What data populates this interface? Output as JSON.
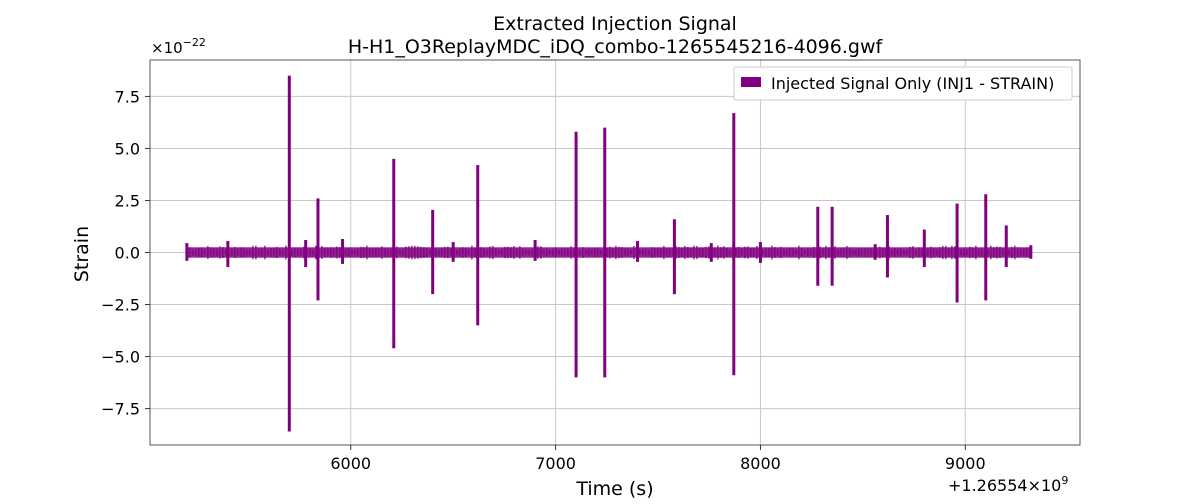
{
  "chart_data": {
    "type": "line",
    "title": "Extracted Injection Signal",
    "subtitle": "H-H1_O3ReplayMDC_iDQ_combo-1265545216-4096.gwf",
    "xlabel": "Time (s)",
    "ylabel": "Strain",
    "x_offset_label": "+1.26554×10",
    "x_offset_exponent": "9",
    "y_scale_label": "×10",
    "y_scale_exponent": "−22",
    "x_ticks": [
      6000,
      7000,
      8000,
      9000
    ],
    "x_tick_labels": [
      "6000",
      "7000",
      "8000",
      "9000"
    ],
    "y_ticks": [
      -7.5,
      -5.0,
      -2.5,
      0.0,
      2.5,
      5.0,
      7.5
    ],
    "y_tick_labels": [
      "−7.5",
      "−5.0",
      "−2.5",
      "0.0",
      "2.5",
      "5.0",
      "7.5"
    ],
    "xlim": [
      5020,
      9560
    ],
    "ylim": [
      -9.25,
      9.25
    ],
    "grid": true,
    "legend_position": "top-right",
    "color": "#800080",
    "series": [
      {
        "name": "Injected Signal Only (INJ1 - STRAIN)",
        "x_range": [
          5200,
          9320
        ],
        "baseline_band": [
          -0.25,
          0.25
        ],
        "spikes": [
          {
            "x": 5200,
            "max": 0.45,
            "min": -0.4
          },
          {
            "x": 5400,
            "max": 0.55,
            "min": -0.7
          },
          {
            "x": 5700,
            "max": 8.5,
            "min": -8.6
          },
          {
            "x": 5780,
            "max": 0.6,
            "min": -0.7
          },
          {
            "x": 5840,
            "max": 2.6,
            "min": -2.3
          },
          {
            "x": 5960,
            "max": 0.65,
            "min": -0.55
          },
          {
            "x": 6210,
            "max": 4.5,
            "min": -4.6
          },
          {
            "x": 6400,
            "max": 2.05,
            "min": -2.0
          },
          {
            "x": 6500,
            "max": 0.5,
            "min": -0.45
          },
          {
            "x": 6620,
            "max": 4.2,
            "min": -3.5
          },
          {
            "x": 6900,
            "max": 0.6,
            "min": -0.4
          },
          {
            "x": 7100,
            "max": 5.8,
            "min": -6.0
          },
          {
            "x": 7240,
            "max": 6.0,
            "min": -6.0
          },
          {
            "x": 7400,
            "max": 0.55,
            "min": -0.45
          },
          {
            "x": 7580,
            "max": 1.6,
            "min": -2.0
          },
          {
            "x": 7760,
            "max": 0.45,
            "min": -0.45
          },
          {
            "x": 7870,
            "max": 6.7,
            "min": -5.9
          },
          {
            "x": 8000,
            "max": 0.5,
            "min": -0.5
          },
          {
            "x": 8280,
            "max": 2.2,
            "min": -1.6
          },
          {
            "x": 8350,
            "max": 2.2,
            "min": -1.6
          },
          {
            "x": 8560,
            "max": 0.4,
            "min": -0.35
          },
          {
            "x": 8620,
            "max": 1.8,
            "min": -1.2
          },
          {
            "x": 8800,
            "max": 1.1,
            "min": -0.7
          },
          {
            "x": 8960,
            "max": 2.35,
            "min": -2.4
          },
          {
            "x": 9100,
            "max": 2.8,
            "min": -2.3
          },
          {
            "x": 9200,
            "max": 1.3,
            "min": -0.7
          },
          {
            "x": 9320,
            "max": 0.35,
            "min": -0.3
          }
        ]
      }
    ]
  }
}
